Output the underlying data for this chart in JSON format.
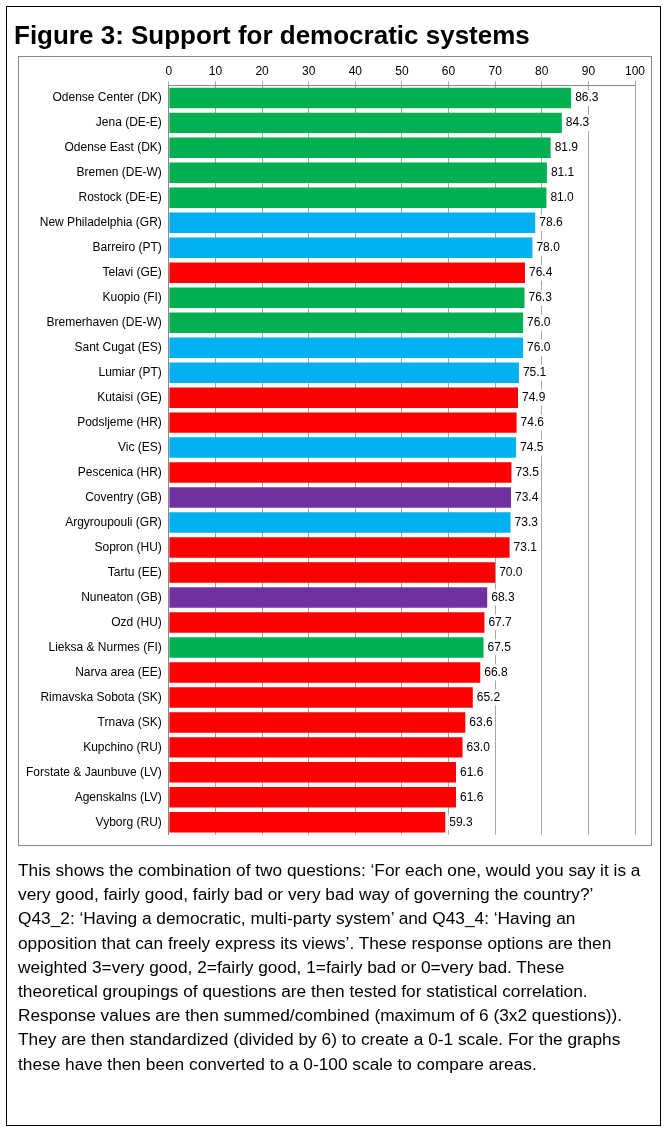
{
  "chart_data": {
    "type": "bar",
    "orientation": "horizontal",
    "title": "Figure 3: Support for democratic systems",
    "categories": [
      "Odense Center (DK)",
      "Jena (DE-E)",
      "Odense East (DK)",
      "Bremen (DE-W)",
      "Rostock (DE-E)",
      "New Philadelphia (GR)",
      "Barreiro (PT)",
      "Telavi (GE)",
      "Kuopio (FI)",
      "Bremerhaven (DE-W)",
      "Sant Cugat (ES)",
      "Lumiar (PT)",
      "Kutaisi (GE)",
      "Podsljeme (HR)",
      "Vic (ES)",
      "Pescenica (HR)",
      "Coventry (GB)",
      "Argyroupouli (GR)",
      "Sopron (HU)",
      "Tartu (EE)",
      "Nuneaton (GB)",
      "Ozd (HU)",
      "Lieksa & Nurmes (FI)",
      "Narva area (EE)",
      "Rimavska Sobota (SK)",
      "Trnava (SK)",
      "Kupchino (RU)",
      "Forstate & Jaunbuve (LV)",
      "Agenskalns (LV)",
      "Vyborg (RU)"
    ],
    "values": [
      86.3,
      84.3,
      81.9,
      81.1,
      81.0,
      78.6,
      78.0,
      76.4,
      76.3,
      76.0,
      76.0,
      75.1,
      74.9,
      74.6,
      74.5,
      73.5,
      73.4,
      73.3,
      73.1,
      70.0,
      68.3,
      67.7,
      67.5,
      66.8,
      65.2,
      63.6,
      63.0,
      61.6,
      61.6,
      59.3
    ],
    "value_labels": [
      "86.3",
      "84.3",
      "81.9",
      "81.1",
      "81.0",
      "78.6",
      "78.0",
      "76.4",
      "76.3",
      "76.0",
      "76.0",
      "75.1",
      "74.9",
      "74.6",
      "74.5",
      "73.5",
      "73.4",
      "73.3",
      "73.1",
      "70.0",
      "68.3",
      "67.7",
      "67.5",
      "66.8",
      "65.2",
      "63.6",
      "63.0",
      "61.6",
      "61.6",
      "59.3"
    ],
    "colors": [
      "#00b050",
      "#00b050",
      "#00b050",
      "#00b050",
      "#00b050",
      "#00b0f0",
      "#00b0f0",
      "#ff0000",
      "#00b050",
      "#00b050",
      "#00b0f0",
      "#00b0f0",
      "#ff0000",
      "#ff0000",
      "#00b0f0",
      "#ff0000",
      "#7030a0",
      "#00b0f0",
      "#ff0000",
      "#ff0000",
      "#7030a0",
      "#ff0000",
      "#00b050",
      "#ff0000",
      "#ff0000",
      "#ff0000",
      "#ff0000",
      "#ff0000",
      "#ff0000",
      "#ff0000"
    ],
    "xlim": [
      0,
      100
    ],
    "xticks": [
      0,
      10,
      20,
      30,
      40,
      50,
      60,
      70,
      80,
      90,
      100
    ],
    "grid": "x",
    "legend": false,
    "annotations": [
      "This shows the combination of two questions: ‘For each one, would you say it is a very good, fairly good, fairly bad or very bad way of governing the country?’ Q43_2: ‘Having a democratic, multi-party system’ and Q43_4: ‘Having an opposition that can freely express its views’. These response options are then weighted 3=very good, 2=fairly good, 1=fairly bad or 0=very bad. These theoretical groupings of questions are then tested for statistical correlation. Response values are then summed/combined (maximum of 6 (3x2 questions)). They are then standardized (divided by 6) to create a 0-1 scale. For the graphs these have then been converted to a 0-100 scale to compare areas."
    ]
  }
}
